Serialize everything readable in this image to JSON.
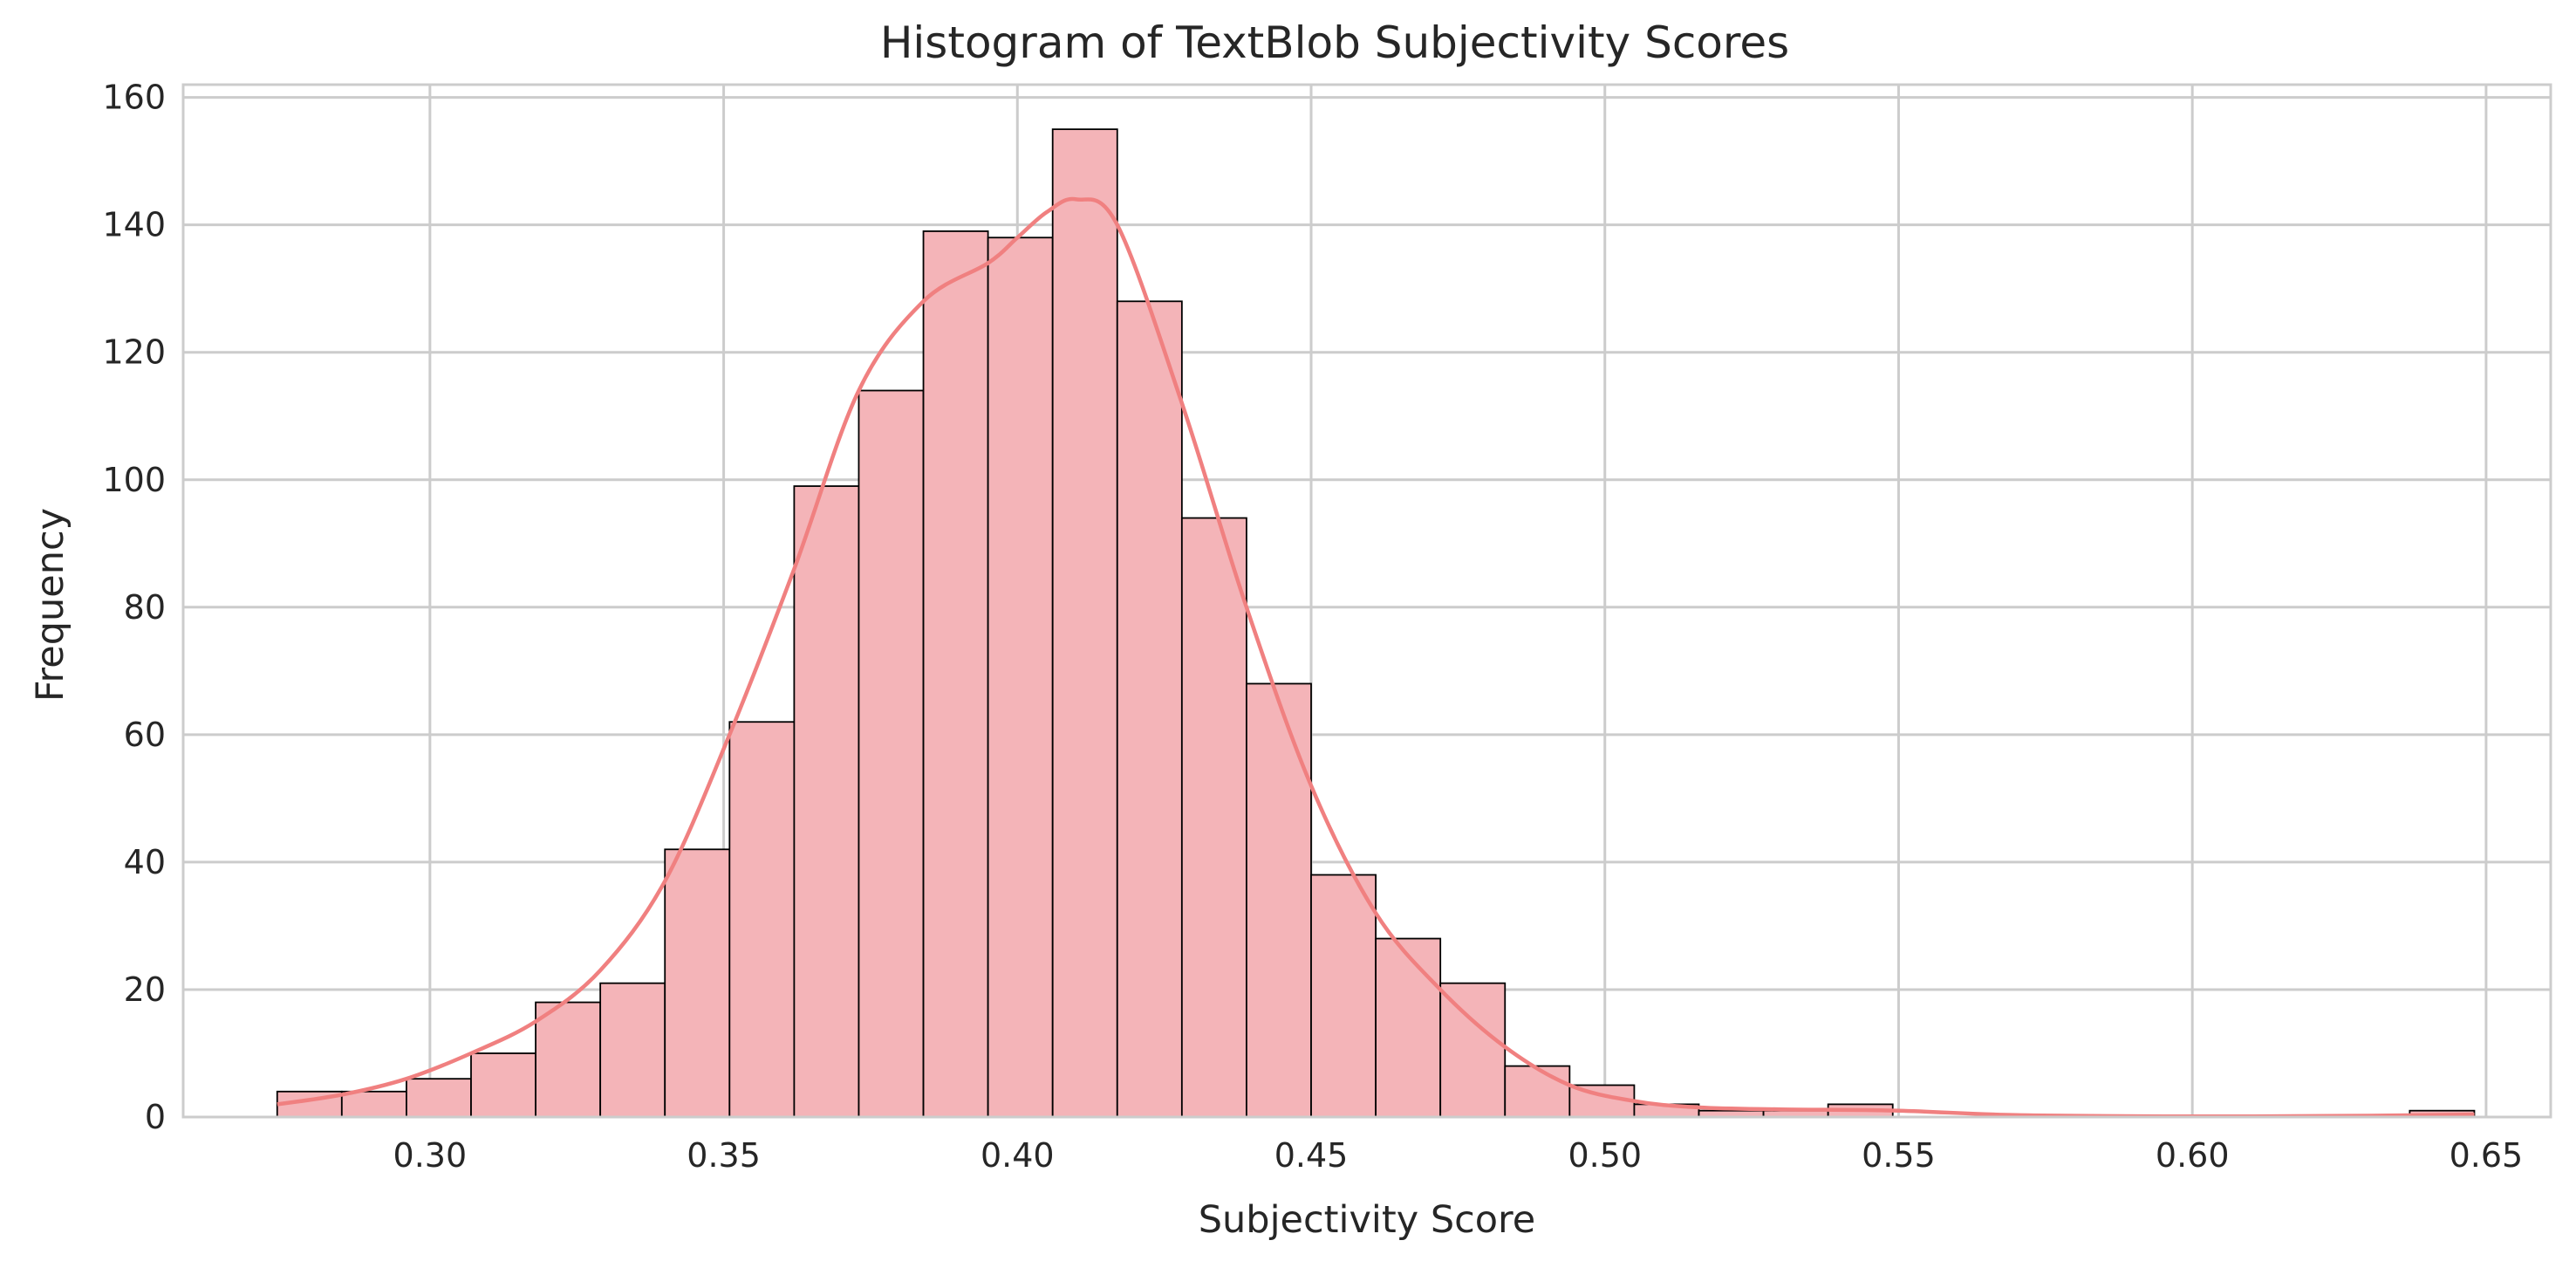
{
  "chart_data": {
    "type": "bar",
    "subtype": "histogram-with-kde",
    "title": "Histogram of TextBlob Subjectivity Scores",
    "xlabel": "Subjectivity Score",
    "ylabel": "Frequency",
    "xlim": [
      0.258,
      0.661
    ],
    "ylim": [
      0,
      162
    ],
    "grid": true,
    "legend": "none",
    "xticks": [
      0.3,
      0.35,
      0.4,
      0.45,
      0.5,
      0.55,
      0.6,
      0.65
    ],
    "xtick_labels": [
      "0.30",
      "0.35",
      "0.40",
      "0.45",
      "0.50",
      "0.55",
      "0.60",
      "0.65"
    ],
    "yticks": [
      0,
      20,
      40,
      60,
      80,
      100,
      120,
      140,
      160
    ],
    "ytick_labels": [
      "0",
      "20",
      "40",
      "60",
      "80",
      "100",
      "120",
      "140",
      "160"
    ],
    "bins": [
      {
        "x0": 0.274,
        "x1": 0.285,
        "count": 4
      },
      {
        "x0": 0.285,
        "x1": 0.296,
        "count": 4
      },
      {
        "x0": 0.296,
        "x1": 0.307,
        "count": 6
      },
      {
        "x0": 0.307,
        "x1": 0.318,
        "count": 10
      },
      {
        "x0": 0.318,
        "x1": 0.329,
        "count": 18
      },
      {
        "x0": 0.329,
        "x1": 0.34,
        "count": 21
      },
      {
        "x0": 0.34,
        "x1": 0.351,
        "count": 42
      },
      {
        "x0": 0.351,
        "x1": 0.362,
        "count": 62
      },
      {
        "x0": 0.362,
        "x1": 0.373,
        "count": 99
      },
      {
        "x0": 0.373,
        "x1": 0.384,
        "count": 114
      },
      {
        "x0": 0.384,
        "x1": 0.395,
        "count": 139
      },
      {
        "x0": 0.395,
        "x1": 0.406,
        "count": 138
      },
      {
        "x0": 0.406,
        "x1": 0.417,
        "count": 155
      },
      {
        "x0": 0.417,
        "x1": 0.428,
        "count": 128
      },
      {
        "x0": 0.428,
        "x1": 0.439,
        "count": 94
      },
      {
        "x0": 0.439,
        "x1": 0.45,
        "count": 68
      },
      {
        "x0": 0.45,
        "x1": 0.461,
        "count": 38
      },
      {
        "x0": 0.461,
        "x1": 0.472,
        "count": 28
      },
      {
        "x0": 0.472,
        "x1": 0.483,
        "count": 21
      },
      {
        "x0": 0.483,
        "x1": 0.494,
        "count": 8
      },
      {
        "x0": 0.494,
        "x1": 0.505,
        "count": 5
      },
      {
        "x0": 0.505,
        "x1": 0.516,
        "count": 2
      },
      {
        "x0": 0.516,
        "x1": 0.527,
        "count": 1
      },
      {
        "x0": 0.527,
        "x1": 0.538,
        "count": 1
      },
      {
        "x0": 0.538,
        "x1": 0.549,
        "count": 2
      },
      {
        "x0": 0.637,
        "x1": 0.648,
        "count": 1
      }
    ],
    "kde": {
      "x": [
        0.274,
        0.285,
        0.296,
        0.307,
        0.318,
        0.329,
        0.34,
        0.351,
        0.362,
        0.373,
        0.384,
        0.395,
        0.4,
        0.405,
        0.41,
        0.417,
        0.428,
        0.439,
        0.45,
        0.461,
        0.472,
        0.483,
        0.494,
        0.505,
        0.516,
        0.53,
        0.55,
        0.57,
        0.6,
        0.63,
        0.648
      ],
      "y": [
        2,
        3.5,
        6,
        10,
        15,
        23,
        37,
        60,
        86,
        114,
        128,
        134,
        138,
        142,
        144,
        140,
        112,
        80,
        52,
        32,
        20,
        11,
        5,
        2.5,
        1.5,
        1.2,
        1,
        0.3,
        0.1,
        0.2,
        0.4
      ]
    },
    "colors": {
      "bar_fill": "#f4b4b8",
      "bar_edge": "#000000",
      "kde_line": "#f08080",
      "grid": "#cccccc",
      "axes_frame": "#cccccc",
      "text": "#262626"
    }
  }
}
